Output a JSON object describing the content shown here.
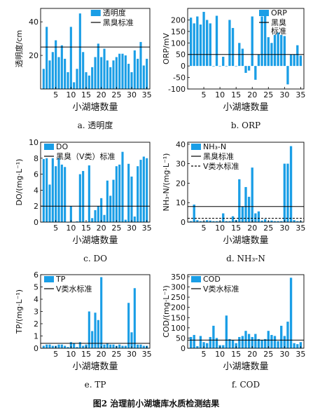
{
  "figure": {
    "caption": "图2 治理前小湖塘库水质检测结果",
    "bar_color": "#1a9ee6",
    "line_color": "#000000"
  },
  "chart_data": [
    {
      "id": "a",
      "type": "bar",
      "subcaption": "a. 透明度",
      "xlabel": "小湖塘数量",
      "ylabel": "透明度/cm",
      "xlim": [
        0,
        36
      ],
      "xticks": [
        5,
        10,
        15,
        20,
        25,
        30,
        35
      ],
      "ylim": [
        0,
        48
      ],
      "yticks": [
        20,
        40
      ],
      "legend": {
        "position": "top-center",
        "entries": [
          "透明度",
          "黑臭标准"
        ]
      },
      "series": [
        {
          "name": "透明度",
          "x": [
            1,
            2,
            3,
            4,
            5,
            6,
            7,
            8,
            9,
            10,
            11,
            12,
            13,
            14,
            15,
            16,
            17,
            18,
            19,
            20,
            21,
            22,
            23,
            24,
            25,
            26,
            27,
            28,
            29,
            30,
            31,
            32,
            33,
            34,
            35
          ],
          "values": [
            12,
            37,
            17,
            22,
            29,
            19,
            26,
            18,
            10,
            37,
            4,
            12,
            45,
            22,
            10,
            8,
            13,
            19,
            27,
            19,
            24,
            17,
            13,
            17,
            19,
            21,
            21,
            20,
            15,
            10,
            23,
            18,
            28,
            14,
            18
          ]
        }
      ],
      "reference_lines": [
        {
          "name": "黑臭标准",
          "y": 25,
          "style": "solid"
        }
      ]
    },
    {
      "id": "b",
      "type": "bar",
      "subcaption": "b. ORP",
      "xlabel": "小湖塘数量",
      "ylabel": "ORP/mV",
      "xlim": [
        0,
        36
      ],
      "xticks": [
        5,
        10,
        15,
        20,
        25,
        30,
        35
      ],
      "ylim": [
        -100,
        250
      ],
      "yticks": [
        -100,
        -50,
        0,
        50,
        100,
        150,
        200
      ],
      "legend": {
        "position": "top-right",
        "entries": [
          "ORP",
          "黑臭标准"
        ]
      },
      "series": [
        {
          "name": "ORP",
          "x": [
            1,
            2,
            3,
            4,
            5,
            6,
            7,
            8,
            9,
            10,
            11,
            12,
            13,
            14,
            15,
            16,
            17,
            18,
            19,
            20,
            21,
            22,
            23,
            24,
            25,
            26,
            27,
            28,
            29,
            30,
            31,
            32,
            33,
            34,
            35
          ],
          "values": [
            210,
            185,
            215,
            180,
            235,
            200,
            185,
            0,
            218,
            0,
            40,
            0,
            200,
            165,
            0,
            100,
            75,
            -30,
            -20,
            215,
            -60,
            50,
            215,
            220,
            125,
            100,
            135,
            145,
            135,
            130,
            -80,
            50,
            50,
            90,
            45
          ]
        }
      ],
      "reference_lines": [
        {
          "name": "黑臭标准",
          "y": 50,
          "style": "solid"
        }
      ]
    },
    {
      "id": "c",
      "type": "bar",
      "subcaption": "c. DO",
      "xlabel": "小湖塘数量",
      "ylabel": "DO/(mg·L⁻¹)",
      "xlim": [
        0,
        36
      ],
      "xticks": [
        5,
        10,
        15,
        20,
        25,
        30,
        35
      ],
      "ylim": [
        0,
        10
      ],
      "yticks": [
        0,
        2,
        4,
        6,
        8,
        10
      ],
      "legend": {
        "position": "top-left",
        "entries": [
          "DO",
          "黑臭（Ⅴ类）标准"
        ]
      },
      "series": [
        {
          "name": "DO",
          "x": [
            1,
            2,
            3,
            4,
            5,
            6,
            7,
            8,
            9,
            10,
            11,
            12,
            13,
            14,
            15,
            16,
            17,
            18,
            19,
            20,
            21,
            22,
            23,
            24,
            25,
            26,
            27,
            28,
            29,
            30,
            31,
            32,
            33,
            34,
            35
          ],
          "values": [
            7.9,
            8.0,
            4.7,
            8.0,
            7.0,
            8.0,
            7.2,
            6.9,
            0,
            2.0,
            0,
            0.1,
            6.0,
            6.4,
            0,
            7.1,
            0.5,
            1.5,
            2.0,
            3.0,
            0.9,
            5.2,
            3.3,
            5.3,
            7.0,
            7.2,
            8.8,
            0.3,
            7.3,
            5.7,
            0.7,
            7.0,
            7.8,
            8.2,
            8.0
          ]
        }
      ],
      "reference_lines": [
        {
          "name": "黑臭（Ⅴ类）标准",
          "y": 2,
          "style": "solid"
        }
      ]
    },
    {
      "id": "d",
      "type": "bar",
      "subcaption": "d. NH₃-N",
      "xlabel": "小湖塘数量",
      "ylabel": "NH₃-N/(mg·L⁻¹)",
      "xlim": [
        0,
        36
      ],
      "xticks": [
        5,
        10,
        15,
        20,
        25,
        30,
        35
      ],
      "ylim": [
        0,
        41
      ],
      "yticks": [
        0,
        10,
        20,
        30,
        40
      ],
      "legend": {
        "position": "top-left",
        "entries": [
          "NH₃-N",
          "黑臭标准",
          "Ⅴ类水标准"
        ]
      },
      "series": [
        {
          "name": "NH₃-N",
          "x": [
            1,
            2,
            3,
            4,
            5,
            6,
            7,
            8,
            9,
            10,
            11,
            12,
            13,
            14,
            15,
            16,
            17,
            18,
            19,
            20,
            21,
            22,
            23,
            24,
            25,
            26,
            27,
            28,
            29,
            30,
            31,
            32,
            33,
            34,
            35
          ],
          "values": [
            0.5,
            9,
            1.0,
            0.5,
            0.5,
            1.0,
            0.8,
            0.5,
            0.5,
            0.5,
            4.5,
            0.5,
            0.5,
            3.0,
            1.0,
            22.0,
            8.0,
            18.0,
            13.0,
            28.0,
            4.5,
            5.5,
            0.8,
            1.5,
            0.5,
            0.8,
            0.5,
            0.5,
            0.5,
            30.0,
            30.0,
            39.0,
            1.0,
            0.5,
            0.5
          ]
        }
      ],
      "reference_lines": [
        {
          "name": "黑臭标准",
          "y": 8,
          "style": "solid"
        },
        {
          "name": "Ⅴ类水标准",
          "y": 2,
          "style": "dashed"
        }
      ]
    },
    {
      "id": "e",
      "type": "bar",
      "subcaption": "e. TP",
      "xlabel": "小湖塘数量",
      "ylabel": "TP/(mg·L⁻¹)",
      "xlim": [
        0,
        36
      ],
      "xticks": [
        5,
        10,
        15,
        20,
        25,
        30,
        35
      ],
      "ylim": [
        0,
        6
      ],
      "yticks": [
        0,
        1,
        2,
        3,
        4,
        5,
        6
      ],
      "legend": {
        "position": "top-left",
        "entries": [
          "TP",
          "Ⅴ类水标准"
        ]
      },
      "series": [
        {
          "name": "TP",
          "x": [
            1,
            2,
            3,
            4,
            5,
            6,
            7,
            8,
            9,
            10,
            11,
            12,
            13,
            14,
            15,
            16,
            17,
            18,
            19,
            20,
            21,
            22,
            23,
            24,
            25,
            26,
            27,
            28,
            29,
            30,
            31,
            32,
            33,
            34,
            35
          ],
          "values": [
            0.2,
            0.3,
            0.3,
            0.2,
            0.2,
            0.3,
            0.3,
            0.2,
            0.1,
            0.5,
            0.4,
            0.1,
            0.5,
            0.2,
            0.3,
            3.0,
            1.4,
            2.9,
            2.3,
            5.8,
            0.3,
            0.4,
            0.3,
            0.3,
            0.2,
            0.3,
            0.2,
            0.2,
            3.7,
            1.3,
            4.9,
            0.3,
            0.3,
            0.2,
            0.2
          ]
        }
      ],
      "reference_lines": [
        {
          "name": "Ⅴ类水标准",
          "y": 0.4,
          "style": "solid"
        }
      ]
    },
    {
      "id": "f",
      "type": "bar",
      "subcaption": "f. COD",
      "xlabel": "小湖塘数量",
      "ylabel": "COD/(mg·L⁻¹)",
      "xlim": [
        0,
        36
      ],
      "xticks": [
        5,
        10,
        15,
        20,
        25,
        30,
        35
      ],
      "ylim": [
        0,
        360
      ],
      "yticks": [
        0,
        50,
        100,
        150,
        200,
        250,
        300,
        350
      ],
      "legend": {
        "position": "top-left",
        "entries": [
          "COD",
          "Ⅴ类水标准"
        ]
      },
      "series": [
        {
          "name": "COD",
          "x": [
            1,
            2,
            3,
            4,
            5,
            6,
            7,
            8,
            9,
            10,
            11,
            12,
            13,
            14,
            15,
            16,
            17,
            18,
            19,
            20,
            21,
            22,
            23,
            24,
            25,
            26,
            27,
            28,
            29,
            30,
            31,
            32,
            33,
            34,
            35
          ],
          "values": [
            55,
            65,
            10,
            60,
            30,
            25,
            55,
            110,
            50,
            15,
            15,
            160,
            45,
            40,
            25,
            55,
            60,
            85,
            70,
            55,
            70,
            45,
            40,
            45,
            85,
            65,
            60,
            35,
            110,
            60,
            130,
            345,
            25,
            20,
            30
          ]
        }
      ],
      "reference_lines": [
        {
          "name": "Ⅴ类水标准",
          "y": 40,
          "style": "solid"
        }
      ]
    }
  ]
}
